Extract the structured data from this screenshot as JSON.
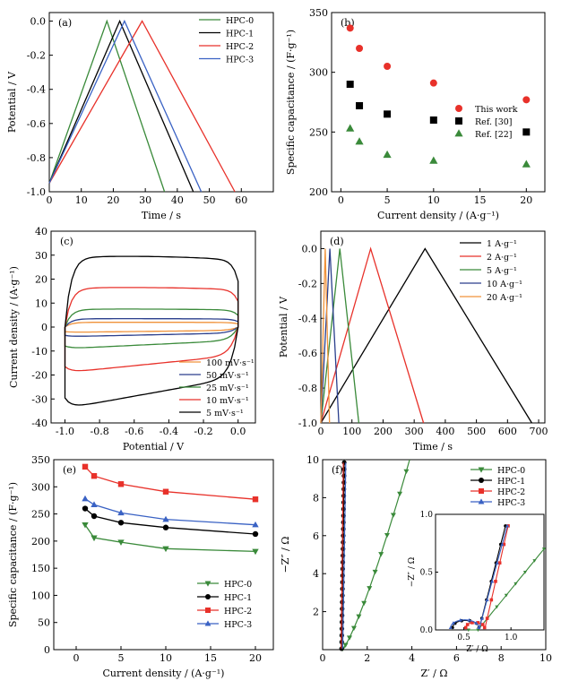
{
  "chart_data": [
    {
      "type": "line",
      "panel": "(a)",
      "xlabel": "Time / s",
      "ylabel": "Potential / V",
      "xlim": [
        0,
        70
      ],
      "ylim": [
        -1.0,
        0.05
      ],
      "xticks": [
        0,
        10,
        20,
        30,
        40,
        50,
        60
      ],
      "yticks": [
        -1.0,
        -0.8,
        -0.6,
        -0.4,
        -0.2,
        0.0
      ],
      "legend_position": "top-right",
      "series": [
        {
          "name": "HPC-0",
          "color": "#3a8a3a",
          "x": [
            0,
            18,
            36
          ],
          "y": [
            -0.95,
            0.0,
            -1.0
          ]
        },
        {
          "name": "HPC-1",
          "color": "#000000",
          "x": [
            0,
            22,
            45
          ],
          "y": [
            -0.95,
            0.0,
            -1.0
          ]
        },
        {
          "name": "HPC-2",
          "color": "#e8312a",
          "x": [
            0,
            29,
            58
          ],
          "y": [
            -0.95,
            0.0,
            -1.0
          ]
        },
        {
          "name": "HPC-3",
          "color": "#3a62c4",
          "x": [
            0,
            23.5,
            47.5
          ],
          "y": [
            -0.95,
            0.0,
            -1.0
          ]
        }
      ]
    },
    {
      "type": "scatter",
      "panel": "(b)",
      "xlabel": "Current density / (A·g⁻¹)",
      "ylabel": "Specific capacitance / (F·g⁻¹)",
      "xlim": [
        -1,
        22
      ],
      "ylim": [
        200,
        350
      ],
      "xticks": [
        0,
        5,
        10,
        15,
        20
      ],
      "yticks": [
        200,
        250,
        300,
        350
      ],
      "legend_position": "bottom-right",
      "series": [
        {
          "name": "This work",
          "color": "#e8312a",
          "marker": "circle",
          "x": [
            1,
            2,
            5,
            10,
            20
          ],
          "y": [
            337,
            320,
            305,
            291,
            277
          ]
        },
        {
          "name": "Ref. [30]",
          "color": "#000000",
          "marker": "square",
          "x": [
            1,
            2,
            5,
            10,
            20
          ],
          "y": [
            290,
            272,
            265,
            260,
            250
          ]
        },
        {
          "name": "Ref. [22]",
          "color": "#3a8a3a",
          "marker": "triangle",
          "x": [
            1,
            2,
            5,
            10,
            20
          ],
          "y": [
            253,
            242,
            231,
            226,
            223
          ]
        }
      ]
    },
    {
      "type": "line",
      "panel": "(c)",
      "xlabel": "Potential / V",
      "ylabel": "Current density / (A·g⁻¹)",
      "xlim": [
        -1.08,
        0.1
      ],
      "ylim": [
        -40,
        40
      ],
      "xticks": [
        -1.0,
        -0.8,
        -0.6,
        -0.4,
        -0.2,
        0.0
      ],
      "yticks": [
        -40,
        -30,
        -20,
        -10,
        0,
        10,
        20,
        30,
        40
      ],
      "legend_position": "bottom-right",
      "series": [
        {
          "name": "100 mV·s⁻¹",
          "color": "#f0923a",
          "upper": 2.0,
          "lower": -2.2
        },
        {
          "name": "50 mV·s⁻¹",
          "color": "#2a3e8c",
          "upper": 3.5,
          "lower": -4.0
        },
        {
          "name": "25 mV·s⁻¹",
          "color": "#3a8a3a",
          "upper": 7.5,
          "lower": -9.0
        },
        {
          "name": "10 mV·s⁻¹",
          "color": "#e8312a",
          "upper": 16.5,
          "lower": -19.0
        },
        {
          "name": "5 mV·s⁻¹",
          "color": "#000000",
          "upper": 29.5,
          "lower": -34.0
        }
      ]
    },
    {
      "type": "line",
      "panel": "(d)",
      "xlabel": "Time / s",
      "ylabel": "Potential / V",
      "xlim": [
        0,
        720
      ],
      "ylim": [
        -1.0,
        0.1
      ],
      "xticks": [
        0,
        100,
        200,
        300,
        400,
        500,
        600,
        700
      ],
      "yticks": [
        -1.0,
        -0.8,
        -0.6,
        -0.4,
        -0.2,
        0.0
      ],
      "legend_position": "top-right",
      "series": [
        {
          "name": "1 A·g⁻¹",
          "color": "#000000",
          "x": [
            0,
            335,
            678
          ],
          "y": [
            -1.0,
            0.0,
            -1.0
          ]
        },
        {
          "name": "2 A·g⁻¹",
          "color": "#e8312a",
          "x": [
            0,
            160,
            330
          ],
          "y": [
            -1.0,
            0.0,
            -1.0
          ]
        },
        {
          "name": "5 A·g⁻¹",
          "color": "#3a8a3a",
          "x": [
            0,
            61,
            122
          ],
          "y": [
            -1.0,
            0.0,
            -1.0
          ]
        },
        {
          "name": "10 A·g⁻¹",
          "color": "#2a3e8c",
          "x": [
            0,
            29,
            58
          ],
          "y": [
            -1.0,
            0.0,
            -1.0
          ]
        },
        {
          "name": "20 A·g⁻¹",
          "color": "#f0923a",
          "x": [
            0,
            14,
            28
          ],
          "y": [
            -1.0,
            0.0,
            -1.0
          ]
        }
      ]
    },
    {
      "type": "line",
      "panel": "(e)",
      "xlabel": "Current density / (A·g⁻¹)",
      "ylabel": "Specific capacitance / (F·g⁻¹)",
      "xlim": [
        -2.5,
        22
      ],
      "ylim": [
        0,
        350
      ],
      "xticks": [
        0,
        5,
        10,
        15,
        20
      ],
      "yticks": [
        0,
        50,
        100,
        150,
        200,
        250,
        300,
        350
      ],
      "legend_position": "bottom-right",
      "series": [
        {
          "name": "HPC-0",
          "color": "#3a8a3a",
          "marker": "triangle-down",
          "x": [
            1,
            2,
            5,
            10,
            20
          ],
          "y": [
            230,
            206,
            198,
            186,
            181
          ]
        },
        {
          "name": "HPC-1",
          "color": "#000000",
          "marker": "circle",
          "x": [
            1,
            2,
            5,
            10,
            20
          ],
          "y": [
            260,
            246,
            234,
            225,
            213
          ]
        },
        {
          "name": "HPC-2",
          "color": "#e8312a",
          "marker": "square",
          "x": [
            1,
            2,
            5,
            10,
            20
          ],
          "y": [
            337,
            320,
            305,
            291,
            277
          ]
        },
        {
          "name": "HPC-3",
          "color": "#3a62c4",
          "marker": "triangle",
          "x": [
            1,
            2,
            5,
            10,
            20
          ],
          "y": [
            278,
            267,
            252,
            240,
            230
          ]
        }
      ]
    },
    {
      "type": "line",
      "panel": "(f)",
      "xlabel": "Z′ / Ω",
      "ylabel": "−Z″ / Ω",
      "xlim": [
        0,
        10
      ],
      "ylim": [
        0,
        10
      ],
      "xticks": [
        0,
        2,
        4,
        6,
        8,
        10
      ],
      "yticks": [
        2,
        4,
        6,
        8,
        10
      ],
      "legend_position": "top-right",
      "series": [
        {
          "name": "HPC-0",
          "color": "#3a8a3a",
          "marker": "triangle-down"
        },
        {
          "name": "HPC-1",
          "color": "#000000",
          "marker": "circle"
        },
        {
          "name": "HPC-2",
          "color": "#e8312a",
          "marker": "square"
        },
        {
          "name": "HPC-3",
          "color": "#3a62c4",
          "marker": "triangle"
        }
      ],
      "inset": {
        "xlabel": "Z′ / Ω",
        "ylabel": "−Z″ / Ω",
        "xlim": [
          0.2,
          1.35
        ],
        "ylim": [
          0,
          1.0
        ],
        "xticks": [
          0.5,
          1.0
        ],
        "yticks": [
          0.0,
          0.5,
          1.0
        ]
      }
    }
  ]
}
